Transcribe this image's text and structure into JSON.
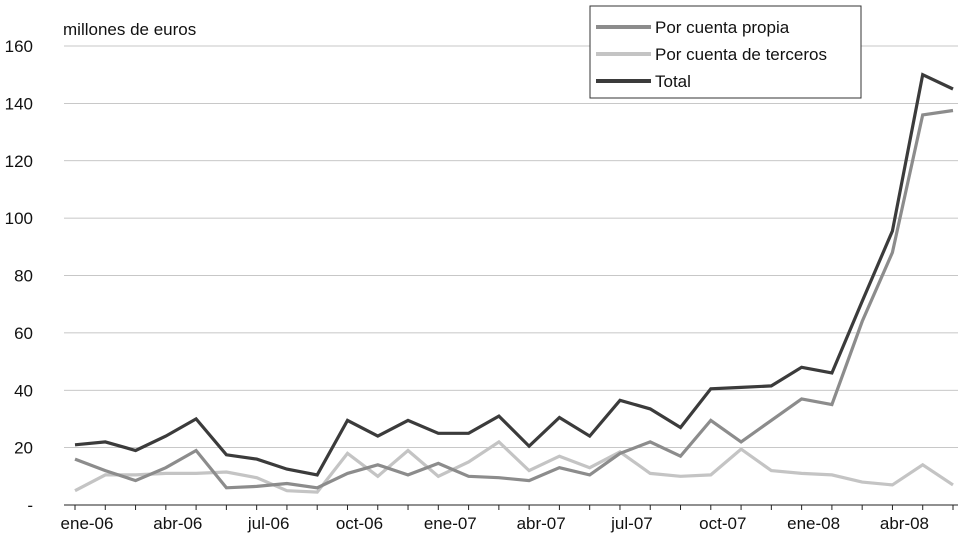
{
  "chart_data": {
    "type": "line",
    "title": "",
    "unit_label": "millones de euros",
    "xlabel": "",
    "ylabel": "",
    "ylim": [
      0,
      160
    ],
    "y_ticks": [
      {
        "value": 0,
        "label": "-"
      },
      {
        "value": 20,
        "label": "20"
      },
      {
        "value": 40,
        "label": "40"
      },
      {
        "value": 60,
        "label": "60"
      },
      {
        "value": 80,
        "label": "80"
      },
      {
        "value": 100,
        "label": "100"
      },
      {
        "value": 120,
        "label": "120"
      },
      {
        "value": 140,
        "label": "140"
      },
      {
        "value": 160,
        "label": "160"
      }
    ],
    "x": [
      "ene-06",
      "feb-06",
      "mar-06",
      "abr-06",
      "may-06",
      "jun-06",
      "jul-06",
      "ago-06",
      "sep-06",
      "oct-06",
      "nov-06",
      "dic-06",
      "ene-07",
      "feb-07",
      "mar-07",
      "abr-07",
      "may-07",
      "jun-07",
      "jul-07",
      "ago-07",
      "sep-07",
      "oct-07",
      "nov-07",
      "dic-07",
      "ene-08",
      "feb-08",
      "mar-08",
      "abr-08",
      "may-08",
      "jun-08"
    ],
    "x_tick_labels": [
      "ene-06",
      "abr-06",
      "jul-06",
      "oct-06",
      "ene-07",
      "abr-07",
      "jul-07",
      "oct-07",
      "ene-08",
      "abr-08"
    ],
    "x_tick_every": 3,
    "grid": "horizontal",
    "legend_position": "top-right",
    "series": [
      {
        "name": "Por cuenta propia",
        "color": "#8c8c8c",
        "values": [
          16,
          12,
          8.5,
          13,
          19,
          6,
          6.5,
          7.5,
          6,
          11,
          14,
          10.5,
          14.5,
          10,
          9.5,
          8.5,
          13,
          10.5,
          18,
          22,
          17,
          29.5,
          22,
          29.5,
          37,
          35,
          64,
          88,
          136,
          137.5
        ]
      },
      {
        "name": "Por cuenta de terceros",
        "color": "#c4c4c4",
        "values": [
          5,
          10.5,
          10.5,
          11,
          11,
          11.5,
          9.5,
          5,
          4.5,
          18,
          10,
          19,
          10,
          15,
          22,
          12,
          17,
          13,
          18.5,
          11,
          10,
          10.5,
          19.5,
          12,
          11,
          10.5,
          8,
          7,
          14,
          7
        ]
      },
      {
        "name": "Total",
        "color": "#3b3b3b",
        "values": [
          21,
          22,
          19,
          24,
          30,
          17.5,
          16,
          12.5,
          10.5,
          29.5,
          24,
          29.5,
          25,
          25,
          31,
          20.5,
          30.5,
          24,
          36.5,
          33.5,
          27,
          40.5,
          41,
          41.5,
          48,
          46,
          71,
          95.5,
          150,
          145
        ]
      }
    ]
  }
}
